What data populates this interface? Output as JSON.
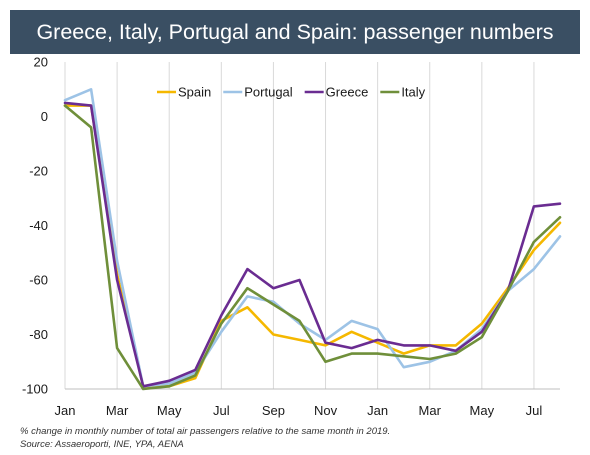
{
  "title": "Greece, Italy, Portugal and Spain: passenger numbers",
  "footnote": "% change in monthly number of total air passengers relative to the same month in 2019.",
  "source": "Source: Assaeroporti, INE, YPA, AENA",
  "chart_data": {
    "type": "line",
    "title": "Greece, Italy, Portugal and Spain: passenger numbers",
    "xlabel": "",
    "ylabel": "",
    "ylim": [
      -100,
      20
    ],
    "yticks": [
      20,
      0,
      -20,
      -40,
      -60,
      -80,
      -100
    ],
    "categories": [
      "Jan",
      "Feb",
      "Mar",
      "Apr",
      "May",
      "Jun",
      "Jul",
      "Aug",
      "Sep",
      "Oct",
      "Nov",
      "Dec",
      "Jan",
      "Feb",
      "Mar",
      "Apr",
      "May",
      "Jun",
      "Jul",
      "Aug"
    ],
    "xtick_labels": [
      "Jan",
      "Mar",
      "May",
      "Jul",
      "Sep",
      "Nov",
      "Jan",
      "Mar",
      "May",
      "Jul"
    ],
    "grid": "vertical",
    "legend_position": "top",
    "series": [
      {
        "name": "Spain",
        "color": "#f5b800",
        "values": [
          4,
          4,
          -58,
          -99,
          -99,
          -96,
          -75,
          -70,
          -80,
          -82,
          -84,
          -79,
          -83,
          -87,
          -84,
          -84,
          -76,
          -63,
          -49,
          -39
        ]
      },
      {
        "name": "Portugal",
        "color": "#9dc3e6",
        "values": [
          6,
          10,
          -53,
          -99,
          -98,
          -94,
          -79,
          -66,
          -68,
          -76,
          -82,
          -75,
          -78,
          -92,
          -90,
          -86,
          -78,
          -64,
          -56,
          -44
        ]
      },
      {
        "name": "Greece",
        "color": "#6a2c91",
        "values": [
          5,
          4,
          -60,
          -99,
          -97,
          -93,
          -73,
          -56,
          -63,
          -60,
          -83,
          -85,
          -82,
          -84,
          -84,
          -86,
          -79,
          -64,
          -33,
          -32
        ]
      },
      {
        "name": "Italy",
        "color": "#6f8f3a",
        "values": [
          4,
          -4,
          -85,
          -100,
          -99,
          -95,
          -76,
          -63,
          -69,
          -75,
          -90,
          -87,
          -87,
          -88,
          -89,
          -87,
          -81,
          -64,
          -46,
          -37
        ]
      }
    ]
  }
}
